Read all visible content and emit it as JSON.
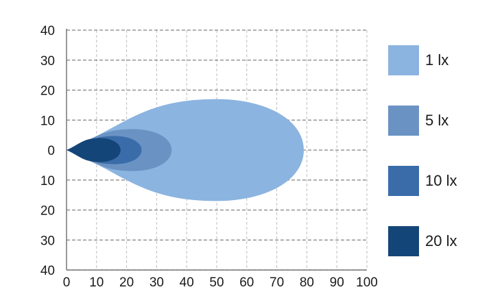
{
  "chart_data": {
    "type": "area",
    "title": "",
    "xlabel": "",
    "ylabel": "",
    "xlim": [
      0,
      100
    ],
    "ylim": [
      -40,
      40
    ],
    "x_ticks": [
      "0",
      "10",
      "20",
      "30",
      "40",
      "50",
      "60",
      "70",
      "80",
      "90",
      "100"
    ],
    "y_ticks": [
      "40",
      "30",
      "20",
      "10",
      "0",
      "10",
      "20",
      "30",
      "40"
    ],
    "grid": "dashed",
    "legend_position": "right",
    "series": [
      {
        "name": "1 lx",
        "color": "#8bb4e0",
        "reach_x": 79,
        "max_half_width_y": 17,
        "peak_x": 50
      },
      {
        "name": "5 lx",
        "color": "#6a93c4",
        "reach_x": 35,
        "max_half_width_y": 7,
        "peak_x": 22
      },
      {
        "name": "10 lx",
        "color": "#3a6ca9",
        "reach_x": 25,
        "max_half_width_y": 4.7,
        "peak_x": 16
      },
      {
        "name": "20 lx",
        "color": "#144578",
        "reach_x": 18,
        "max_half_width_y": 4,
        "peak_x": 11
      }
    ]
  }
}
